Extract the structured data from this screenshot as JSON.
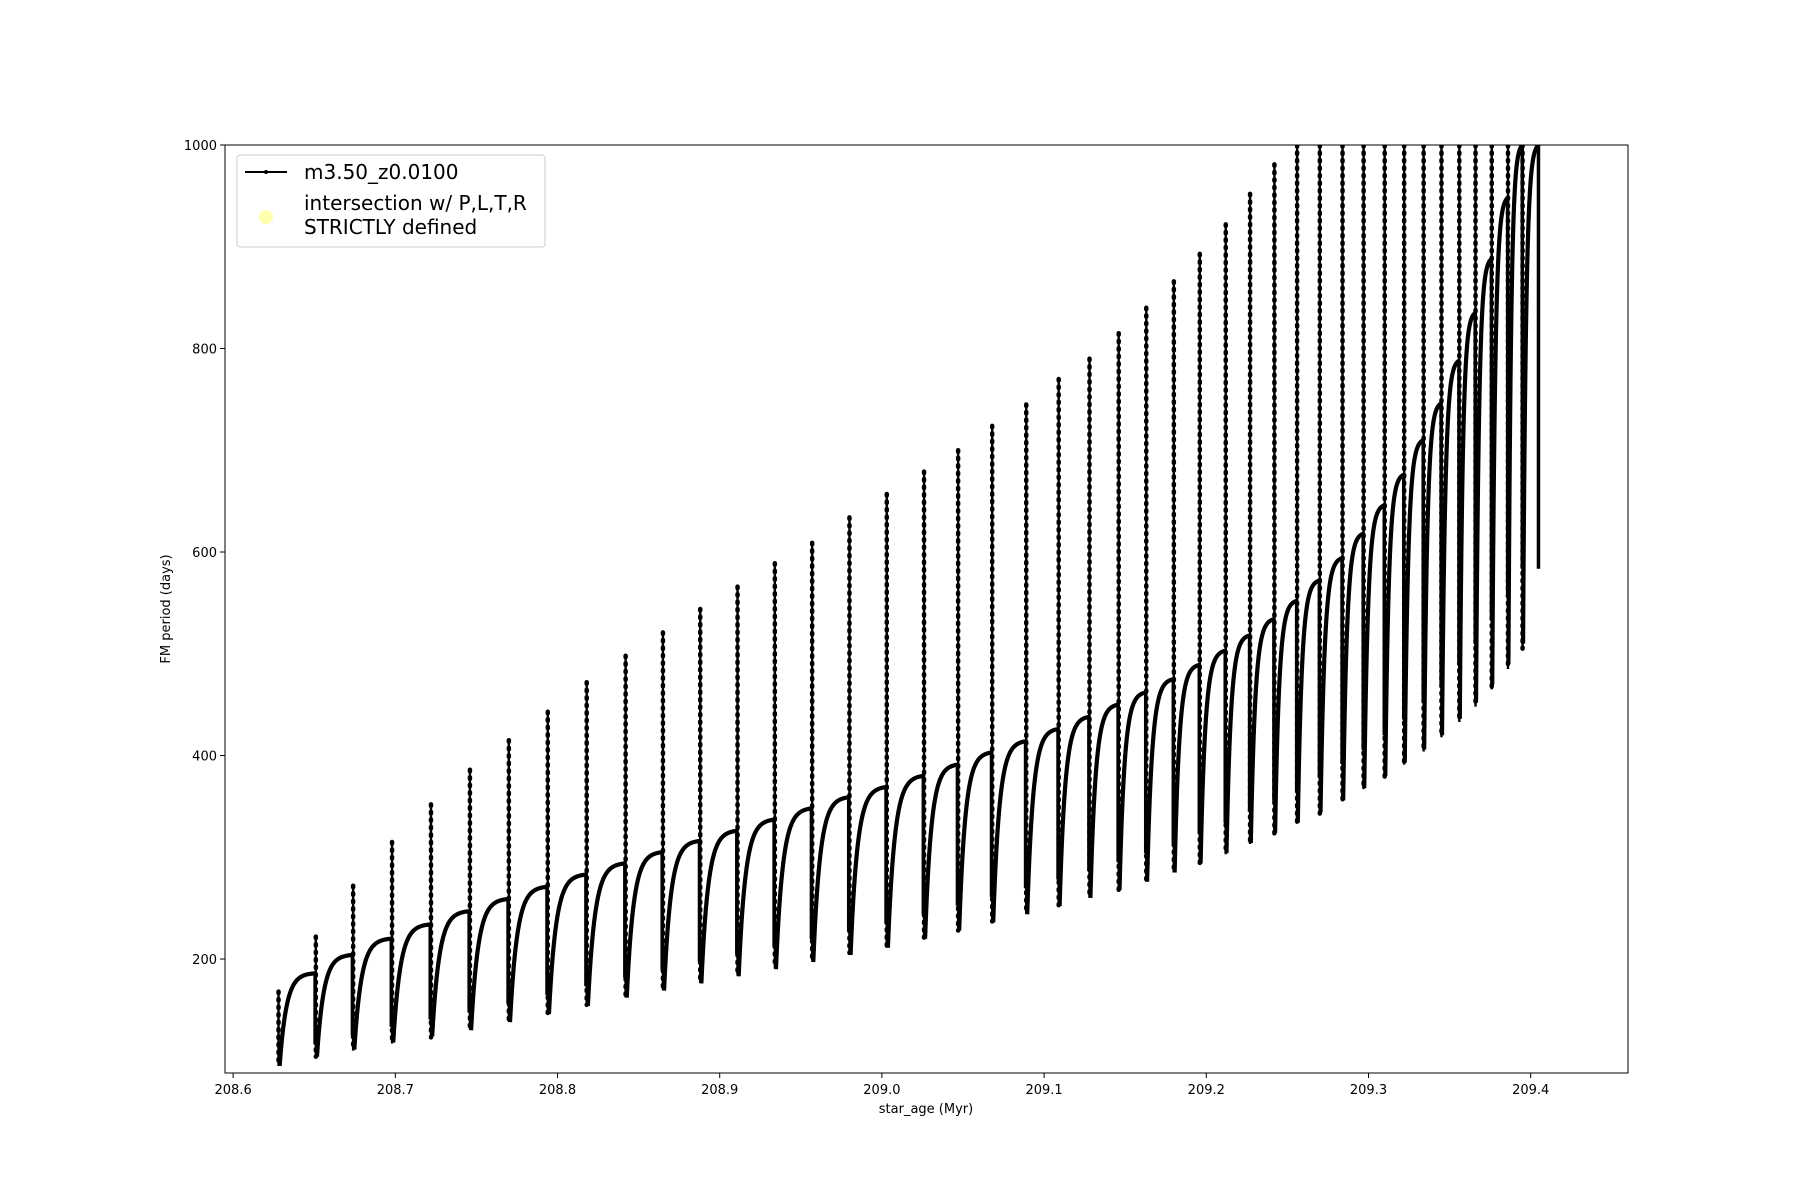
{
  "chart_data": {
    "type": "line",
    "xlabel": "star_age (Myr)",
    "ylabel": "FM period (days)",
    "xlim": [
      208.595,
      209.46
    ],
    "ylim": [
      88,
      1000
    ],
    "xticks": [
      208.6,
      208.7,
      208.8,
      208.9,
      209.0,
      209.1,
      209.2,
      209.3,
      209.4
    ],
    "xtick_labels": [
      "208.6",
      "208.7",
      "208.8",
      "208.9",
      "209.0",
      "209.1",
      "209.2",
      "209.3",
      "209.4"
    ],
    "yticks": [
      200,
      400,
      600,
      800,
      1000
    ],
    "ytick_labels": [
      "200",
      "400",
      "600",
      "800",
      "1000"
    ],
    "grid": false,
    "legend_position": "top-left",
    "legend": [
      {
        "label": "m3.50_z0.0100",
        "marker": "line-dot",
        "color": "#000000"
      },
      {
        "label_lines": [
          "intersection w/ P,L,T,R",
          "STRICTLY defined"
        ],
        "marker": "circle",
        "color": "#ffffb0"
      }
    ],
    "series": [
      {
        "name": "m3.50_z0.0100",
        "color": "#000000",
        "cycles": {
          "description": "thermal pulse cycles",
          "start_age": [
            208.628,
            208.651,
            208.674,
            208.698,
            208.722,
            208.746,
            208.77,
            208.794,
            208.818,
            208.842,
            208.865,
            208.888,
            208.911,
            208.934,
            208.957,
            208.98,
            209.003,
            209.026,
            209.047,
            209.068,
            209.089,
            209.109,
            209.128,
            209.146,
            209.163,
            209.18,
            209.196,
            209.212,
            209.227,
            209.242,
            209.256,
            209.27,
            209.284,
            209.297,
            209.31,
            209.322,
            209.334,
            209.345,
            209.356,
            209.366,
            209.376,
            209.386,
            209.395
          ],
          "min_period": [
            95,
            104,
            111,
            118,
            124,
            130,
            138,
            146,
            154,
            162,
            169,
            176,
            183,
            190,
            197,
            204,
            211,
            220,
            228,
            236,
            244,
            252,
            260,
            268,
            276,
            285,
            294,
            304,
            314,
            324,
            334,
            344,
            356,
            368,
            380,
            393,
            406,
            420,
            436,
            452,
            470,
            490,
            510
          ],
          "plateau_period": [
            186,
            204,
            220,
            234,
            247,
            259,
            271,
            283,
            294,
            305,
            316,
            326,
            337,
            348,
            359,
            369,
            380,
            391,
            403,
            414,
            426,
            438,
            450,
            462,
            475,
            489,
            503,
            518,
            534,
            552,
            572,
            594,
            618,
            646,
            676,
            710,
            746,
            788,
            835,
            888,
            948,
            1000,
            1000
          ],
          "spike_top": [
            168,
            222,
            272,
            315,
            352,
            386,
            415,
            443,
            472,
            498,
            521,
            544,
            566,
            589,
            609,
            634,
            657,
            679,
            700,
            724,
            745,
            770,
            790,
            815,
            840,
            866,
            893,
            922,
            952,
            981,
            1000,
            1000,
            1000,
            1000,
            1000,
            1000,
            1000,
            1000,
            1000,
            1000,
            1000,
            1000,
            1000
          ],
          "spike_bottom": [
            95,
            104,
            110,
            117,
            123,
            132,
            140,
            147,
            155,
            163,
            170,
            177,
            184,
            191,
            199,
            206,
            213,
            221,
            228,
            237,
            245,
            253,
            261,
            268,
            276,
            285,
            294,
            303,
            313,
            322,
            333,
            343,
            355,
            367,
            379,
            391,
            404,
            418,
            433,
            448,
            465,
            485,
            505
          ]
        }
      }
    ]
  }
}
